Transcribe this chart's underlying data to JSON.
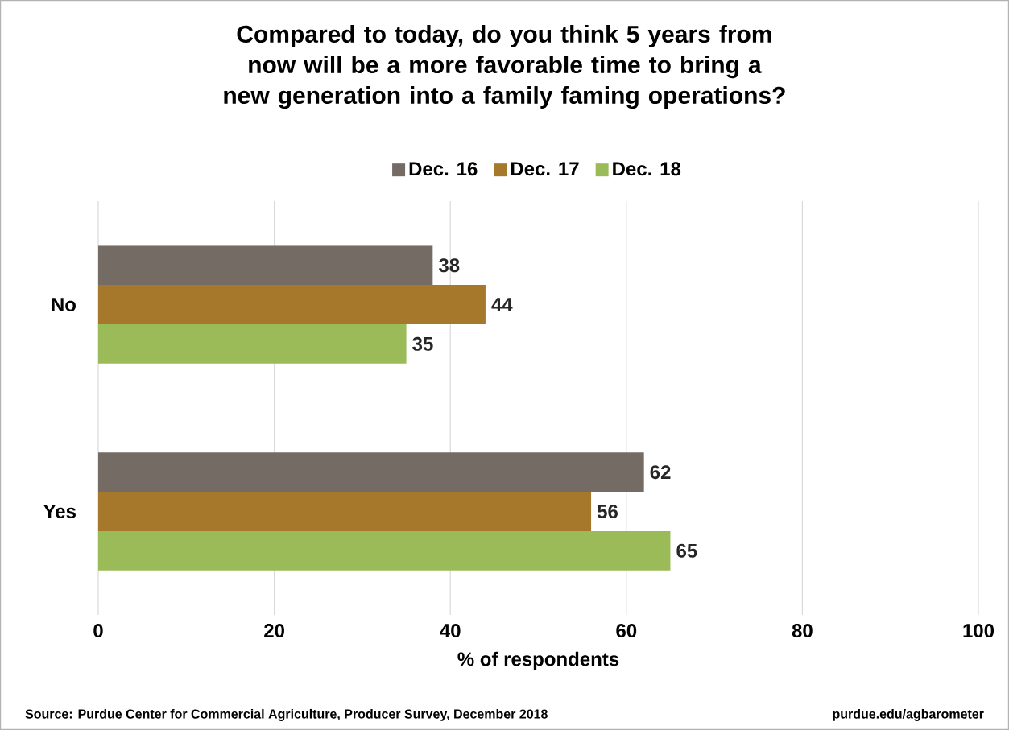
{
  "chart_data": {
    "type": "bar",
    "orientation": "horizontal",
    "title": "Compared to today, do you think 5 years from now will be a more favorable time to bring a new generation into a family faming operations?",
    "xlabel": "% of respondents",
    "categories": [
      "No",
      "Yes"
    ],
    "series": [
      {
        "name": "Dec. 16",
        "color": "#756b65",
        "values": [
          38,
          62
        ]
      },
      {
        "name": "Dec. 17",
        "color": "#a5782b",
        "values": [
          44,
          56
        ]
      },
      {
        "name": "Dec. 18",
        "color": "#9bbb59",
        "values": [
          35,
          65
        ]
      }
    ],
    "xlim": [
      0,
      100
    ],
    "xticks": [
      0,
      20,
      40,
      60,
      80,
      100
    ],
    "grid": "x",
    "legend": "top",
    "data_labels": true,
    "annotations": [
      "Source: Purdue Center for Commercial Agriculture, Producer Survey, December 2018",
      "purdue.edu/agbarometer"
    ]
  }
}
